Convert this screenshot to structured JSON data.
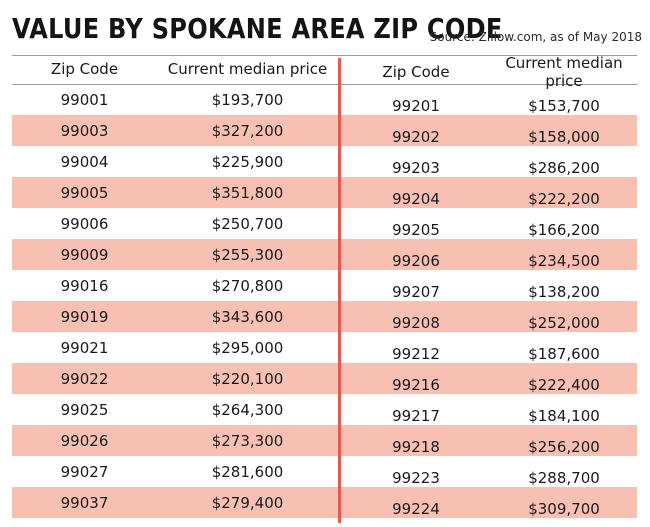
{
  "title": "VALUE BY SPOKANE AREA ZIP CODE",
  "source": "Source: Zillow.com, as of May 2018",
  "colors": {
    "accent": "#e35a4e",
    "shade": "#f8c0b3"
  },
  "chart_data": {
    "type": "table",
    "columns": [
      "Zip Code",
      "Current median price"
    ],
    "tables": [
      {
        "rows": [
          [
            "99001",
            "$193,700"
          ],
          [
            "99003",
            "$327,200"
          ],
          [
            "99004",
            "$225,900"
          ],
          [
            "99005",
            "$351,800"
          ],
          [
            "99006",
            "$250,700"
          ],
          [
            "99009",
            "$255,300"
          ],
          [
            "99016",
            "$270,800"
          ],
          [
            "99019",
            "$343,600"
          ],
          [
            "99021",
            "$295,000"
          ],
          [
            "99022",
            "$220,100"
          ],
          [
            "99025",
            "$264,300"
          ],
          [
            "99026",
            "$273,300"
          ],
          [
            "99027",
            "$281,600"
          ],
          [
            "99037",
            "$279,400"
          ]
        ]
      },
      {
        "rows": [
          [
            "99201",
            "$153,700"
          ],
          [
            "99202",
            "$158,000"
          ],
          [
            "99203",
            "$286,200"
          ],
          [
            "99204",
            "$222,200"
          ],
          [
            "99205",
            "$166,200"
          ],
          [
            "99206",
            "$234,500"
          ],
          [
            "99207",
            "$138,200"
          ],
          [
            "99208",
            "$252,000"
          ],
          [
            "99212",
            "$187,600"
          ],
          [
            "99216",
            "$222,400"
          ],
          [
            "99217",
            "$184,100"
          ],
          [
            "99218",
            "$256,200"
          ],
          [
            "99223",
            "$288,700"
          ],
          [
            "99224",
            "$309,700"
          ]
        ]
      }
    ]
  }
}
